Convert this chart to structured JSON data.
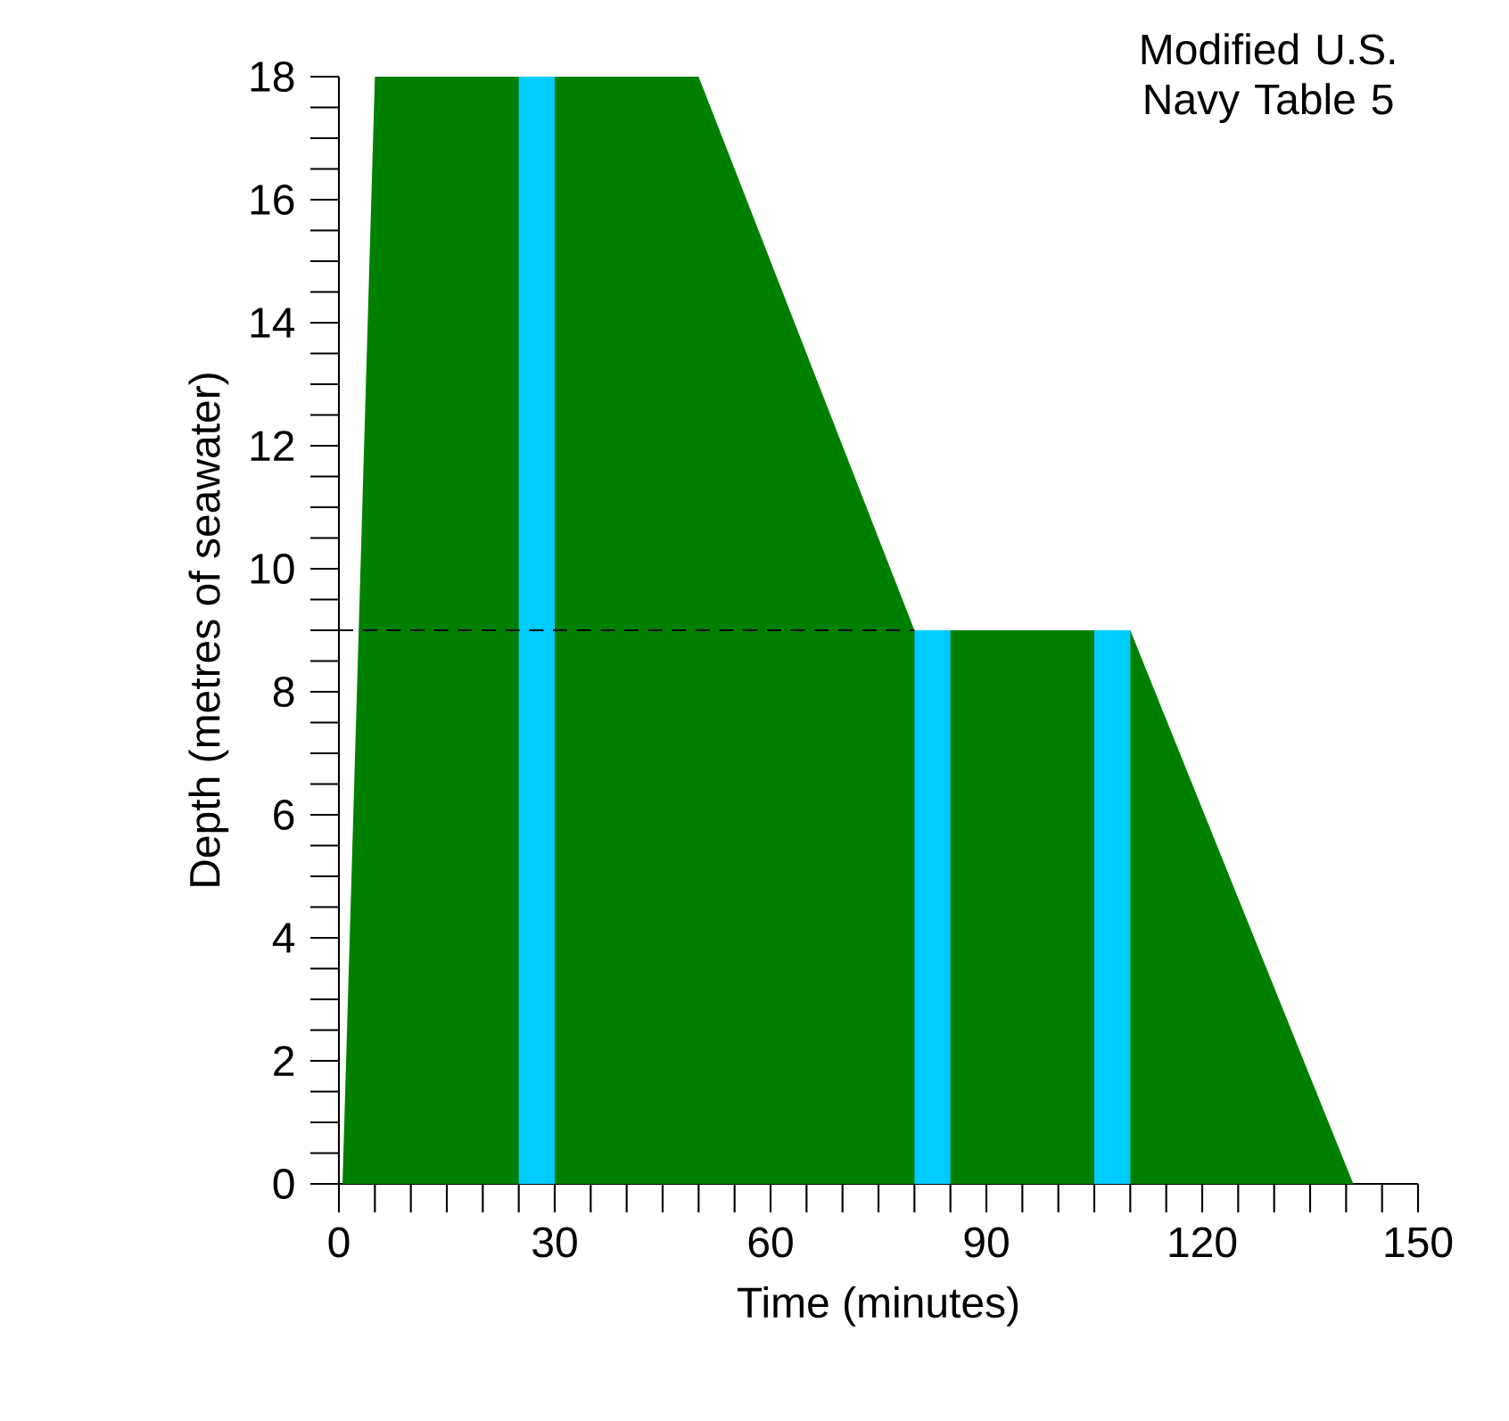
{
  "chart_data": {
    "type": "area",
    "title": "Modified U.S. Navy Table 5",
    "xlabel": "Time (minutes)",
    "ylabel": "Depth (metres of seawater)",
    "xlim": [
      0,
      150
    ],
    "ylim": [
      0,
      18
    ],
    "xticks": [
      0,
      30,
      60,
      90,
      120,
      150
    ],
    "yticks": [
      0,
      2,
      4,
      6,
      8,
      10,
      12,
      14,
      16,
      18
    ],
    "series": [
      {
        "type": "area",
        "color": "#008000",
        "x": [
          0.5,
          5,
          50,
          80,
          110,
          141
        ],
        "values": [
          0,
          18,
          18,
          9,
          9,
          0
        ]
      },
      {
        "type": "area",
        "color": "#00ccff",
        "x": [
          25,
          30
        ],
        "values": [
          18,
          18
        ]
      },
      {
        "type": "area",
        "color": "#00ccff",
        "x": [
          80,
          85
        ],
        "values": [
          9,
          9
        ]
      },
      {
        "type": "area",
        "color": "#00ccff",
        "x": [
          105,
          110
        ],
        "values": [
          9,
          9
        ]
      },
      {
        "type": "line",
        "color": "#000000",
        "line_style": "dashed",
        "x": [
          0,
          80
        ],
        "values": [
          9,
          9
        ]
      }
    ]
  }
}
